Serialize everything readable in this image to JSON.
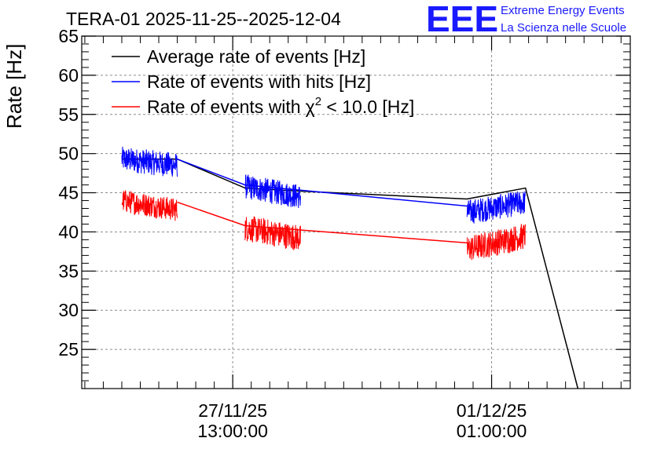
{
  "brand": {
    "logo": "EEE",
    "line1": "Extreme Energy Events",
    "line2": "La Scienza nelle Scuole",
    "color": "#1a1aff"
  },
  "chart_data": {
    "type": "line",
    "title": "TERA-01 2025-11-25--2025-12-04",
    "xlabel": "",
    "ylabel": "Rate [Hz]",
    "ylim": [
      20,
      65
    ],
    "yticks": [
      25,
      30,
      35,
      40,
      45,
      50,
      55,
      60,
      65
    ],
    "x_unit": "hours since 2025-11-25 00:00",
    "xlim": [
      12,
      190
    ],
    "xticks": [
      {
        "x": 61,
        "line1": "27/11/25",
        "line2": "13:00:00"
      },
      {
        "x": 145,
        "line1": "01/12/25",
        "line2": "01:00:00"
      }
    ],
    "grid": true,
    "legend_position": "top-left",
    "series": [
      {
        "name": "Average rate of events [Hz]",
        "color": "#000000",
        "style": "line",
        "x": [
          25,
          43,
          65,
          83,
          137,
          156,
          173
        ],
        "y": [
          49.3,
          49.3,
          45.6,
          45.2,
          44.2,
          45.6,
          20.0
        ]
      },
      {
        "name": "Rate of events with hits [Hz]",
        "color": "#0000ff",
        "style": "band",
        "bands": [
          {
            "x0": 25,
            "x1": 43,
            "y0": 49.3,
            "y1": 48.5,
            "amp": 1.6
          },
          {
            "x0": 65,
            "x1": 83,
            "y0": 45.8,
            "y1": 44.5,
            "amp": 1.6
          },
          {
            "x0": 137,
            "x1": 156,
            "y0": 42.5,
            "y1": 43.8,
            "amp": 1.6
          }
        ],
        "connect_x": [
          43,
          65,
          137
        ],
        "connect_y": [
          49.3,
          46.0,
          43.3
        ]
      },
      {
        "name": "Rate of events with",
        "name_symbol": "χ",
        "name_exp": "2",
        "name_tail": " < 10.0 [Hz]",
        "color": "#ff0000",
        "style": "band",
        "bands": [
          {
            "x0": 25,
            "x1": 43,
            "y0": 44.0,
            "y1": 42.8,
            "amp": 1.5
          },
          {
            "x0": 65,
            "x1": 83,
            "y0": 40.5,
            "y1": 39.2,
            "amp": 1.7
          },
          {
            "x0": 137,
            "x1": 156,
            "y0": 37.8,
            "y1": 39.5,
            "amp": 1.7
          }
        ],
        "connect_x": [
          43,
          65,
          137
        ],
        "connect_y": [
          43.8,
          40.8,
          38.6
        ]
      }
    ]
  }
}
